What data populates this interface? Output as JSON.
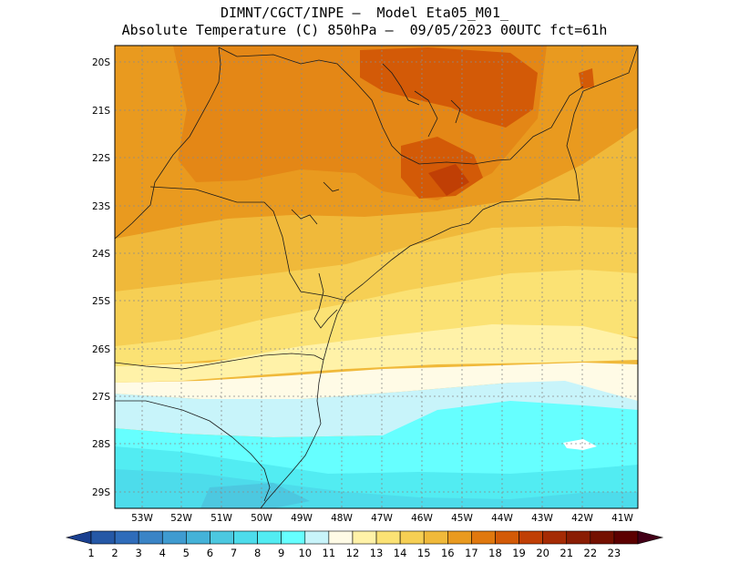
{
  "title_line1": "DIMNT/CGCT/INPE –  Model Eta05_M01_",
  "title_line2": "Absolute Temperature (C) 850hPa –  09/05/2023 00UTC fct=61h",
  "lat_labels": [
    "20S",
    "21S",
    "22S",
    "23S",
    "24S",
    "25S",
    "26S",
    "27S",
    "28S",
    "29S"
  ],
  "lon_labels": [
    "53W",
    "52W",
    "51W",
    "50W",
    "49W",
    "48W",
    "47W",
    "46W",
    "45W",
    "44W",
    "43W",
    "42W",
    "41W"
  ],
  "colorbar": {
    "labels": [
      "1",
      "2",
      "3",
      "4",
      "5",
      "6",
      "7",
      "8",
      "9",
      "10",
      "11",
      "12",
      "13",
      "14",
      "15",
      "16",
      "17",
      "18",
      "19",
      "20",
      "21",
      "22",
      "23"
    ],
    "colors": [
      "#1a3f8f",
      "#2558a6",
      "#2f6cba",
      "#3a84c6",
      "#3f9bd0",
      "#44b2d8",
      "#4cc8e0",
      "#4ddceb",
      "#52ecf2",
      "#66ffff",
      "#c8f4fa",
      "#fffbe6",
      "#fff2a8",
      "#fbe274",
      "#f6cf54",
      "#f0b93a",
      "#e99a1f",
      "#e0780e",
      "#d35a07",
      "#c03f05",
      "#a52b04",
      "#8a1d03",
      "#741000",
      "#5c0000",
      "#430018"
    ]
  }
}
